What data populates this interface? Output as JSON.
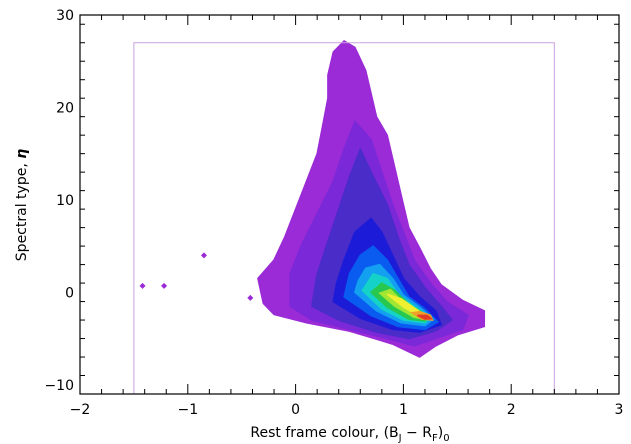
{
  "chart_data": {
    "type": "contour",
    "xlabel": "Rest frame colour, (B",
    "xlabel_sub1": "J",
    "xlabel_mid": " − R",
    "xlabel_sub2": "F",
    "xlabel_end": ")",
    "xlabel_sub3": "0",
    "ylabel": "Spectral type, ",
    "ylabel_symbol": "η",
    "xlim": [
      -2,
      3
    ],
    "ylim": [
      -11,
      30
    ],
    "xticks": [
      -2,
      -1,
      0,
      1,
      2,
      3
    ],
    "xtick_labels": [
      "−2",
      "−1",
      "0",
      "1",
      "2",
      "3"
    ],
    "yticks": [
      -10,
      0,
      10,
      20,
      30
    ],
    "ytick_labels": [
      "−10",
      "0",
      "10",
      "20",
      "30"
    ],
    "selection_box": {
      "x_min": -1.5,
      "x_max": 2.4,
      "y_min": -11,
      "y_max": 27,
      "color": "#c8a0e0"
    },
    "levels": [
      {
        "color": "#9b2bd6",
        "outline": [
          [
            -0.3,
            -1.2
          ],
          [
            -0.2,
            -2.4
          ],
          [
            0.1,
            -3.3
          ],
          [
            0.5,
            -4.2
          ],
          [
            0.9,
            -5.6
          ],
          [
            1.15,
            -7.0
          ],
          [
            1.3,
            -5.8
          ],
          [
            1.5,
            -4.6
          ],
          [
            1.75,
            -3.7
          ],
          [
            1.75,
            -2.0
          ],
          [
            1.55,
            -0.9
          ],
          [
            1.35,
            0.8
          ],
          [
            1.25,
            2.5
          ],
          [
            1.15,
            4.8
          ],
          [
            1.05,
            7.0
          ],
          [
            1.0,
            9.5
          ],
          [
            0.95,
            12.0
          ],
          [
            0.9,
            14.5
          ],
          [
            0.85,
            17.0
          ],
          [
            0.75,
            19.0
          ],
          [
            0.7,
            21.5
          ],
          [
            0.65,
            24.0
          ],
          [
            0.55,
            26.5
          ],
          [
            0.45,
            27.2
          ],
          [
            0.35,
            26.0
          ],
          [
            0.3,
            23.5
          ],
          [
            0.3,
            21.0
          ],
          [
            0.25,
            18.0
          ],
          [
            0.2,
            15.0
          ],
          [
            0.1,
            12.0
          ],
          [
            0.0,
            9.0
          ],
          [
            -0.1,
            6.0
          ],
          [
            -0.2,
            3.5
          ],
          [
            -0.35,
            1.5
          ]
        ]
      },
      {
        "color": "#7a28d8",
        "outline": [
          [
            -0.05,
            -1.5
          ],
          [
            0.15,
            -3.0
          ],
          [
            0.5,
            -4.0
          ],
          [
            0.85,
            -5.0
          ],
          [
            1.1,
            -5.8
          ],
          [
            1.3,
            -5.0
          ],
          [
            1.55,
            -4.0
          ],
          [
            1.6,
            -2.5
          ],
          [
            1.4,
            -1.0
          ],
          [
            1.25,
            1.0
          ],
          [
            1.1,
            3.5
          ],
          [
            1.0,
            6.5
          ],
          [
            0.9,
            9.5
          ],
          [
            0.8,
            13.0
          ],
          [
            0.7,
            16.5
          ],
          [
            0.55,
            18.5
          ],
          [
            0.45,
            15.5
          ],
          [
            0.35,
            12.0
          ],
          [
            0.2,
            8.5
          ],
          [
            0.05,
            5.0
          ],
          [
            -0.05,
            2.0
          ]
        ]
      },
      {
        "color": "#4a2cc8",
        "outline": [
          [
            0.15,
            -1.5
          ],
          [
            0.4,
            -3.0
          ],
          [
            0.75,
            -4.3
          ],
          [
            1.05,
            -5.0
          ],
          [
            1.3,
            -4.2
          ],
          [
            1.45,
            -3.0
          ],
          [
            1.35,
            -1.5
          ],
          [
            1.2,
            0.5
          ],
          [
            1.05,
            3.0
          ],
          [
            0.95,
            6.0
          ],
          [
            0.85,
            9.5
          ],
          [
            0.7,
            13.0
          ],
          [
            0.6,
            15.5
          ],
          [
            0.5,
            12.5
          ],
          [
            0.4,
            9.0
          ],
          [
            0.3,
            5.5
          ],
          [
            0.2,
            2.0
          ]
        ]
      },
      {
        "color": "#1c1cd8",
        "outline": [
          [
            0.35,
            -1.0
          ],
          [
            0.6,
            -2.8
          ],
          [
            0.9,
            -4.0
          ],
          [
            1.15,
            -4.3
          ],
          [
            1.35,
            -3.5
          ],
          [
            1.3,
            -2.0
          ],
          [
            1.15,
            -0.5
          ],
          [
            1.0,
            1.5
          ],
          [
            0.9,
            4.0
          ],
          [
            0.8,
            6.5
          ],
          [
            0.7,
            8.0
          ],
          [
            0.55,
            6.5
          ],
          [
            0.45,
            3.5
          ],
          [
            0.38,
            1.0
          ]
        ]
      },
      {
        "color": "#0a5cf0",
        "outline": [
          [
            0.45,
            -0.5
          ],
          [
            0.7,
            -2.5
          ],
          [
            0.95,
            -3.7
          ],
          [
            1.2,
            -4.0
          ],
          [
            1.32,
            -3.2
          ],
          [
            1.2,
            -1.8
          ],
          [
            1.05,
            -0.5
          ],
          [
            0.95,
            1.5
          ],
          [
            0.85,
            3.5
          ],
          [
            0.72,
            5.0
          ],
          [
            0.6,
            4.0
          ],
          [
            0.5,
            2.0
          ]
        ]
      },
      {
        "color": "#14a0f0",
        "outline": [
          [
            0.55,
            0.0
          ],
          [
            0.75,
            -2.0
          ],
          [
            0.98,
            -3.3
          ],
          [
            1.2,
            -3.6
          ],
          [
            1.28,
            -2.9
          ],
          [
            1.15,
            -1.6
          ],
          [
            1.0,
            -0.3
          ],
          [
            0.9,
            1.5
          ],
          [
            0.78,
            3.0
          ],
          [
            0.65,
            2.6
          ],
          [
            0.58,
            1.2
          ]
        ]
      },
      {
        "color": "#14d2c8",
        "outline": [
          [
            0.62,
            0.2
          ],
          [
            0.8,
            -1.8
          ],
          [
            1.0,
            -3.0
          ],
          [
            1.2,
            -3.3
          ],
          [
            1.25,
            -2.7
          ],
          [
            1.1,
            -1.5
          ],
          [
            0.95,
            -0.2
          ],
          [
            0.85,
            1.5
          ],
          [
            0.72,
            2.0
          ]
        ]
      },
      {
        "color": "#28c850",
        "outline": [
          [
            0.7,
            0.0
          ],
          [
            0.85,
            -1.6
          ],
          [
            1.05,
            -2.9
          ],
          [
            1.2,
            -3.1
          ],
          [
            1.22,
            -2.5
          ],
          [
            1.05,
            -1.3
          ],
          [
            0.92,
            0.2
          ],
          [
            0.8,
            1.0
          ]
        ]
      },
      {
        "color": "#a0e632",
        "outline": [
          [
            0.78,
            -0.1
          ],
          [
            0.92,
            -1.5
          ],
          [
            1.1,
            -2.7
          ],
          [
            1.2,
            -2.9
          ],
          [
            1.18,
            -2.3
          ],
          [
            1.0,
            -1.1
          ],
          [
            0.88,
            0.3
          ]
        ]
      },
      {
        "color": "#f0f032",
        "outline": [
          [
            0.85,
            -0.2
          ],
          [
            1.0,
            -1.6
          ],
          [
            1.15,
            -2.6
          ],
          [
            1.21,
            -2.7
          ],
          [
            1.14,
            -2.0
          ],
          [
            0.98,
            -0.7
          ]
        ]
      },
      {
        "color": "#f0a028",
        "outline": [
          [
            1.08,
            -2.2
          ],
          [
            1.17,
            -2.9
          ],
          [
            1.27,
            -3.0
          ],
          [
            1.25,
            -2.5
          ],
          [
            1.15,
            -2.1
          ]
        ]
      },
      {
        "color": "#e03c28",
        "outline": [
          [
            1.13,
            -2.5
          ],
          [
            1.2,
            -2.9
          ],
          [
            1.26,
            -2.85
          ],
          [
            1.22,
            -2.5
          ]
        ]
      }
    ],
    "outliers": [
      {
        "x": -1.42,
        "y": 0.7,
        "color": "#9b2bd6"
      },
      {
        "x": -1.22,
        "y": 0.7,
        "color": "#9b2bd6"
      },
      {
        "x": -0.85,
        "y": 4.0,
        "color": "#9b2bd6"
      },
      {
        "x": -0.42,
        "y": -0.6,
        "color": "#9b2bd6"
      },
      {
        "x": -0.05,
        "y": -2.3,
        "color": "#9b2bd6"
      }
    ]
  }
}
